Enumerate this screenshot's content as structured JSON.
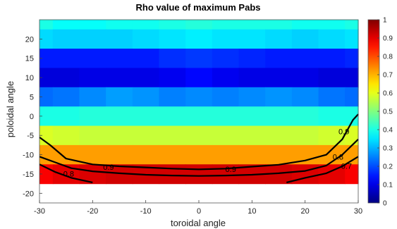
{
  "chart_data": {
    "type": "heatmap",
    "title": "Rho value of maximum Pabs",
    "xlabel": "toroidal angle",
    "ylabel": "poloidal angle",
    "xlim": [
      -30,
      30
    ],
    "ylim": [
      -22.5,
      25
    ],
    "x_ticks": [
      "-30",
      "-20",
      "-10",
      "0",
      "10",
      "20",
      "30"
    ],
    "y_ticks": [
      "-20",
      "-15",
      "-10",
      "-5",
      "0",
      "5",
      "10",
      "15",
      "20"
    ],
    "colorbar": {
      "range": [
        0,
        1
      ],
      "ticks": [
        "0",
        "0.1",
        "0.2",
        "0.3",
        "0.4",
        "0.5",
        "0.6",
        "0.7",
        "0.8",
        "0.9",
        "1"
      ],
      "colormap": "jet"
    },
    "x": [
      -30,
      -25,
      -20,
      -15,
      -10,
      -5,
      0,
      5,
      10,
      15,
      20,
      25,
      30
    ],
    "rows": [
      {
        "y_center": 22.5,
        "values": [
          0.4,
          0.38,
          0.38,
          0.39,
          0.39,
          0.4,
          0.41,
          0.4,
          0.4,
          0.4,
          0.39,
          0.39,
          0.4
        ]
      },
      {
        "y_center": 20,
        "values": [
          0.34,
          0.33,
          0.33,
          0.33,
          0.34,
          0.35,
          0.36,
          0.35,
          0.35,
          0.34,
          0.33,
          0.34,
          0.35
        ]
      },
      {
        "y_center": 15,
        "values": [
          0.15,
          0.15,
          0.15,
          0.15,
          0.15,
          0.17,
          0.18,
          0.17,
          0.16,
          0.15,
          0.15,
          0.15,
          0.16
        ]
      },
      {
        "y_center": 10,
        "values": [
          0.09,
          0.09,
          0.1,
          0.1,
          0.1,
          0.11,
          0.13,
          0.11,
          0.1,
          0.1,
          0.1,
          0.09,
          0.09
        ]
      },
      {
        "y_center": 5,
        "values": [
          0.23,
          0.24,
          0.26,
          0.28,
          0.27,
          0.25,
          0.26,
          0.25,
          0.26,
          0.27,
          0.26,
          0.24,
          0.23
        ]
      },
      {
        "y_center": 0,
        "values": [
          0.4,
          0.4,
          0.41,
          0.41,
          0.41,
          0.41,
          0.41,
          0.41,
          0.41,
          0.41,
          0.41,
          0.4,
          0.4
        ]
      },
      {
        "y_center": -5,
        "values": [
          0.59,
          0.58,
          0.57,
          0.57,
          0.57,
          0.57,
          0.57,
          0.57,
          0.57,
          0.57,
          0.57,
          0.58,
          0.59
        ]
      },
      {
        "y_center": -10,
        "values": [
          0.72,
          0.72,
          0.72,
          0.72,
          0.72,
          0.72,
          0.72,
          0.72,
          0.72,
          0.72,
          0.72,
          0.72,
          0.72
        ]
      },
      {
        "y_center": -15,
        "values": [
          0.88,
          0.9,
          0.91,
          0.92,
          0.92,
          0.92,
          0.92,
          0.92,
          0.92,
          0.92,
          0.91,
          0.9,
          0.88
        ]
      }
    ],
    "contours": [
      {
        "level": "0.9",
        "label": "0.9",
        "points": [
          [
            -30,
            -5.5
          ],
          [
            -28,
            -7.5
          ],
          [
            -25,
            -11
          ],
          [
            -20,
            -12.5
          ],
          [
            -15,
            -13
          ],
          [
            -10,
            -13.3
          ],
          [
            -5,
            -13.6
          ],
          [
            0,
            -13.8
          ],
          [
            5,
            -13.6
          ],
          [
            10,
            -13.1
          ],
          [
            15,
            -12.6
          ],
          [
            20,
            -11.5
          ],
          [
            24,
            -10
          ],
          [
            27,
            -6
          ],
          [
            29,
            -1
          ],
          [
            30,
            0.5
          ]
        ]
      },
      {
        "level": "0.8",
        "label": "0.8",
        "points": [
          [
            -30,
            -10.5
          ],
          [
            -27,
            -12
          ],
          [
            -24,
            -13.5
          ],
          [
            -20,
            -14.3
          ],
          [
            -15,
            -14.8
          ],
          [
            -10,
            -15.2
          ],
          [
            -5,
            -15.4
          ],
          [
            0,
            -15.5
          ],
          [
            5,
            -15.4
          ],
          [
            10,
            -15.2
          ],
          [
            15,
            -14.8
          ],
          [
            20,
            -14.2
          ],
          [
            24,
            -12.8
          ],
          [
            27,
            -10
          ],
          [
            30,
            -6
          ]
        ]
      },
      {
        "level": "0.7",
        "label": "0.7",
        "points": [
          [
            -30,
            -12.5
          ],
          [
            -27,
            -14.5
          ],
          [
            -24,
            -16
          ],
          [
            -20,
            -17.2
          ]
        ]
      },
      {
        "level": "0.7",
        "label": "0.7",
        "points": [
          [
            16.5,
            -17.2
          ],
          [
            20,
            -16
          ],
          [
            24,
            -14.8
          ],
          [
            27,
            -13
          ],
          [
            30,
            -10.5
          ]
        ]
      }
    ],
    "contour_labels": [
      {
        "text": "0.8",
        "x": -24.5,
        "y": -15.1
      },
      {
        "text": "0.9",
        "x": -17,
        "y": -13.4
      },
      {
        "text": "0.9",
        "x": 6,
        "y": -13.9
      },
      {
        "text": "0.9",
        "x": 27.3,
        "y": -4.2
      },
      {
        "text": "0.8",
        "x": 26.2,
        "y": -10.7
      },
      {
        "text": "0.7",
        "x": 27.8,
        "y": -13.1
      }
    ]
  }
}
